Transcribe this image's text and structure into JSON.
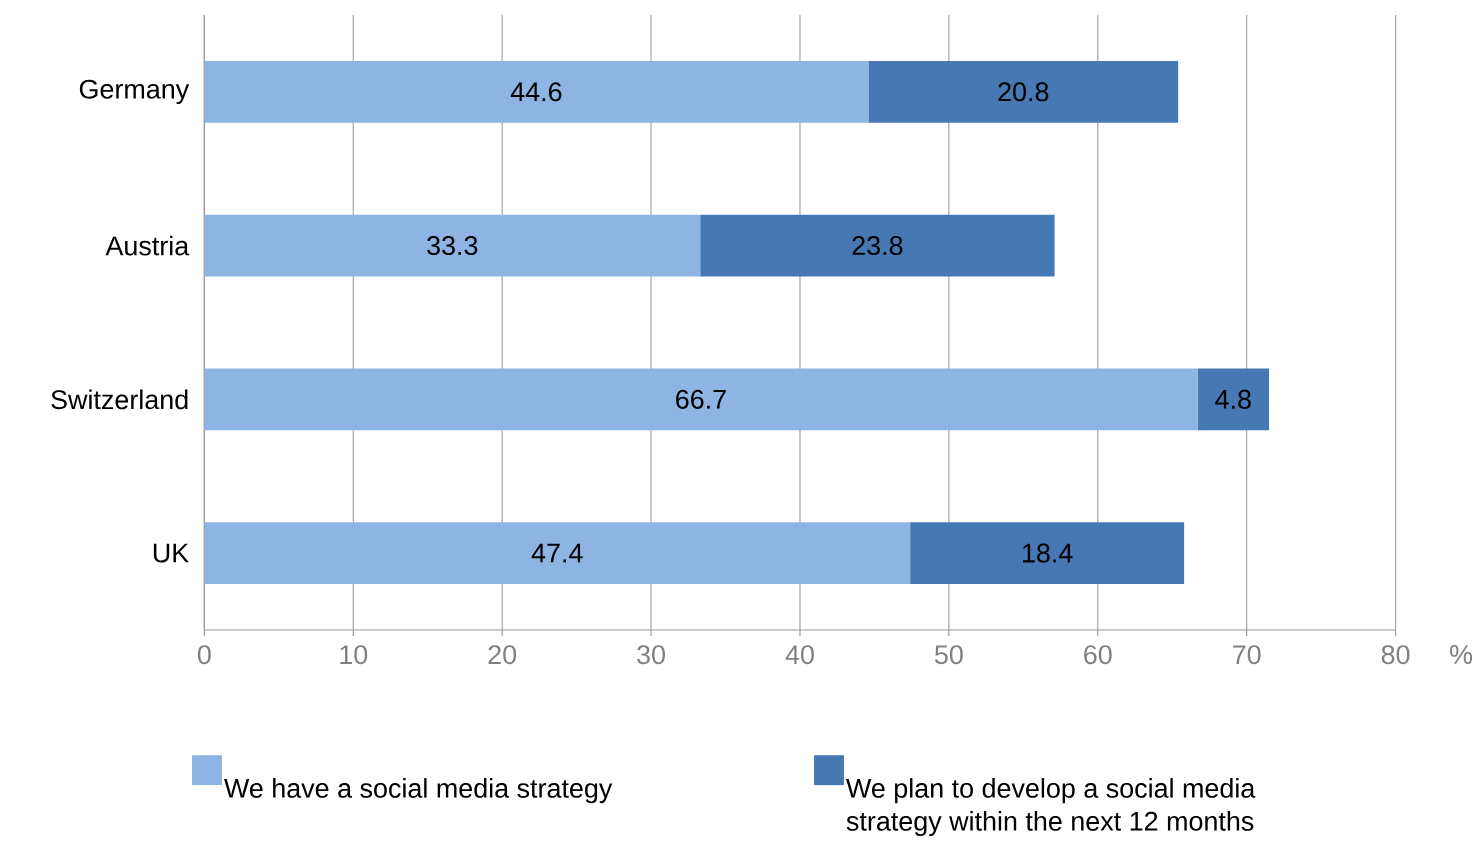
{
  "chart_data": {
    "type": "bar",
    "orientation": "horizontal",
    "stacked": true,
    "categories": [
      "Germany",
      "Austria",
      "Switzerland",
      "UK"
    ],
    "series": [
      {
        "name": "We have a social media strategy",
        "color": "#8eb4e3",
        "values": [
          44.6,
          33.3,
          66.7,
          47.4
        ]
      },
      {
        "name": "We plan to develop a social media strategy within the next 12 months",
        "color": "#4679b4",
        "values": [
          20.8,
          23.8,
          4.8,
          18.4
        ]
      }
    ],
    "xlabel": "%",
    "xlim": [
      0,
      80
    ],
    "xticks": [
      0,
      10,
      20,
      30,
      40,
      50,
      60,
      70,
      80
    ],
    "grid": "x",
    "legend": "bottom",
    "data_labels": true
  }
}
